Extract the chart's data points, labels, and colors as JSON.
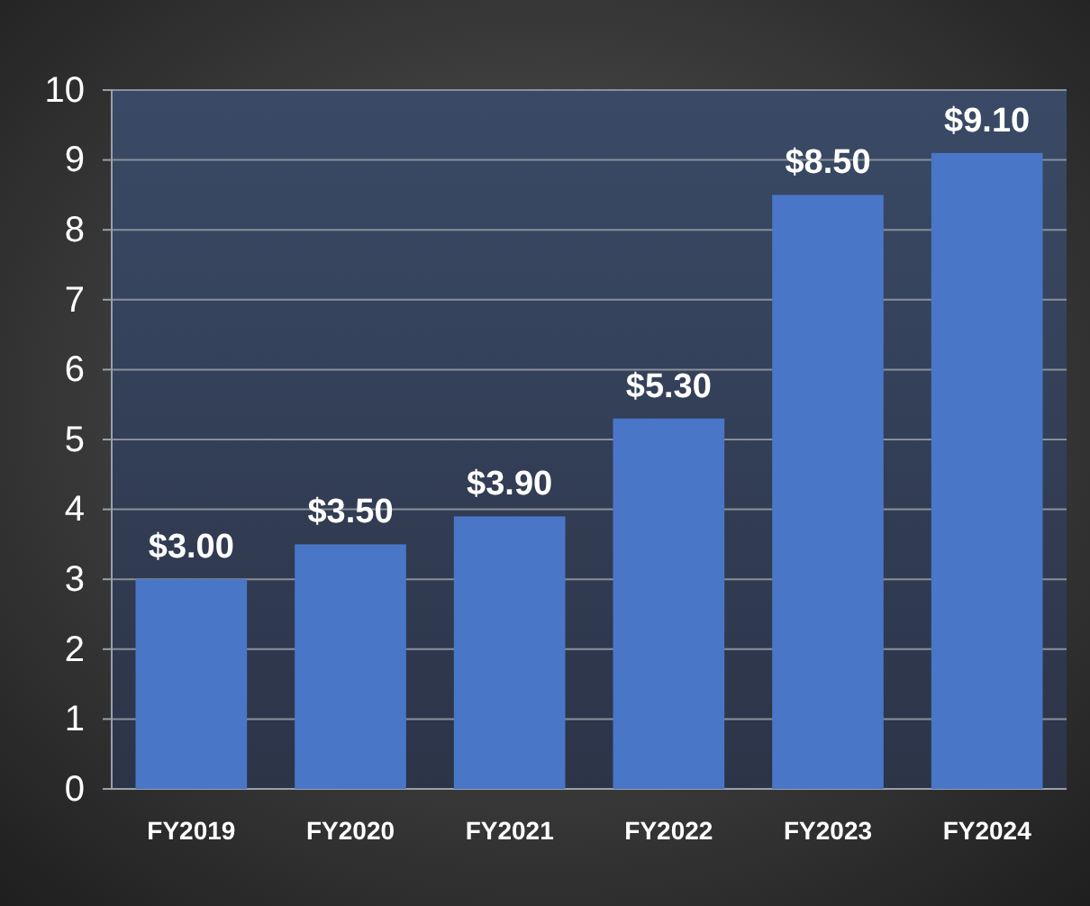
{
  "chart_data": {
    "type": "bar",
    "categories": [
      "FY2019",
      "FY2020",
      "FY2021",
      "FY2022",
      "FY2023",
      "FY2024"
    ],
    "values": [
      3.0,
      3.5,
      3.9,
      5.3,
      8.5,
      9.1
    ],
    "value_labels": [
      "$3.00",
      "$3.50",
      "$3.90",
      "$5.30",
      "$8.50",
      "$9.10"
    ],
    "color": "#4a76c8",
    "ylim": [
      0,
      10
    ],
    "yticks": [
      0,
      1,
      2,
      3,
      4,
      5,
      6,
      7,
      8,
      9,
      10
    ],
    "grid": "y"
  }
}
